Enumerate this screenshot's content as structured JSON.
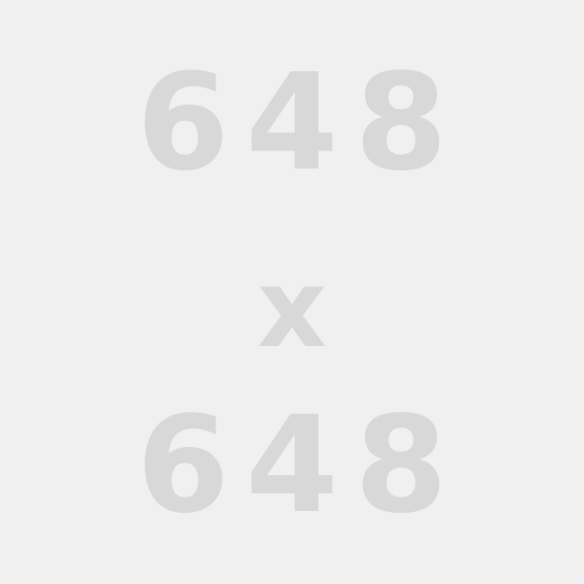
{
  "placeholder": {
    "width_text": "648",
    "separator": "x",
    "height_text": "648"
  },
  "colors": {
    "background": "#f0f0f0",
    "text": "#d8d8d8"
  }
}
